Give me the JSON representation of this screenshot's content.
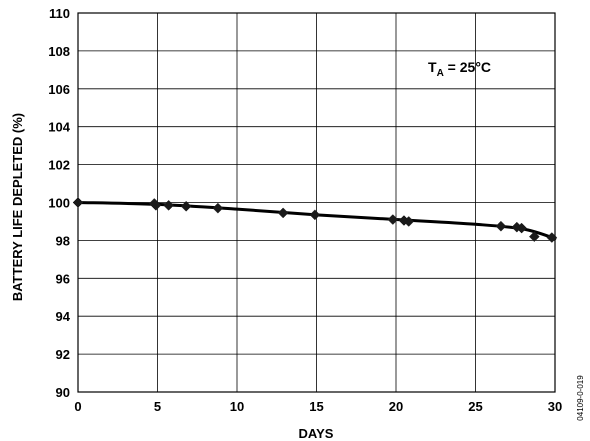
{
  "chart_data": {
    "type": "line",
    "title": "",
    "xlabel": "DAYS",
    "ylabel": "BATTERY LIFE DEPLETED (%)",
    "xlim": [
      0,
      30
    ],
    "ylim": [
      90,
      110
    ],
    "x_ticks": [
      0,
      5,
      10,
      15,
      20,
      25,
      30
    ],
    "y_ticks": [
      90,
      92,
      94,
      96,
      98,
      100,
      102,
      104,
      106,
      108,
      110
    ],
    "grid": true,
    "legend": "none",
    "annotation": {
      "main": "T",
      "subscript": "A",
      "rest": " = 25°C"
    },
    "figure_id": "04109-0-019",
    "series": [
      {
        "marker": "diamond",
        "color": "#1a1a1a",
        "points": [
          {
            "x": 0,
            "y": 100.0
          },
          {
            "x": 4.8,
            "y": 99.95
          },
          {
            "x": 4.9,
            "y": 99.85
          },
          {
            "x": 5.7,
            "y": 99.85
          },
          {
            "x": 6.8,
            "y": 99.8
          },
          {
            "x": 8.8,
            "y": 99.7
          },
          {
            "x": 12.9,
            "y": 99.45
          },
          {
            "x": 14.9,
            "y": 99.35
          },
          {
            "x": 19.8,
            "y": 99.1
          },
          {
            "x": 20.5,
            "y": 99.05
          },
          {
            "x": 20.8,
            "y": 99.0
          },
          {
            "x": 26.6,
            "y": 98.75
          },
          {
            "x": 27.6,
            "y": 98.7
          },
          {
            "x": 27.9,
            "y": 98.65
          },
          {
            "x": 28.7,
            "y": 98.2
          },
          {
            "x": 29.8,
            "y": 98.15
          }
        ]
      }
    ],
    "trend_line": [
      {
        "x": 0,
        "y": 100.0
      },
      {
        "x": 5,
        "y": 99.9
      },
      {
        "x": 10,
        "y": 99.65
      },
      {
        "x": 15,
        "y": 99.35
      },
      {
        "x": 20,
        "y": 99.1
      },
      {
        "x": 25,
        "y": 98.85
      },
      {
        "x": 28,
        "y": 98.6
      },
      {
        "x": 30,
        "y": 98.1
      }
    ]
  }
}
